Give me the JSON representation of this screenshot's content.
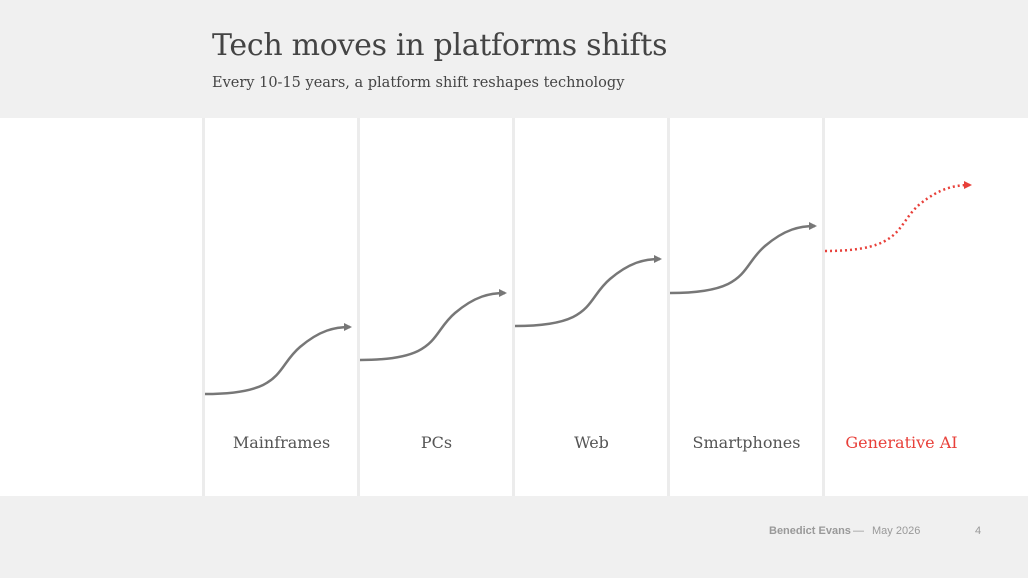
{
  "slide": {
    "title": "Tech moves in platforms shifts",
    "subtitle": "Every 10-15 years, a platform shift reshapes technology"
  },
  "stages": [
    {
      "label": "Mainframes",
      "highlight": false
    },
    {
      "label": "PCs",
      "highlight": false
    },
    {
      "label": "Web",
      "highlight": false
    },
    {
      "label": "Smartphones",
      "highlight": false
    },
    {
      "label": "Generative AI",
      "highlight": true
    }
  ],
  "colors": {
    "curve": "#777777",
    "highlight": "#e8403a",
    "band": "#ffffff",
    "background": "#f0f0f0"
  },
  "footer": {
    "author": "Benedict Evans",
    "separator": "—",
    "date": "May 2026",
    "page_number": "4"
  }
}
